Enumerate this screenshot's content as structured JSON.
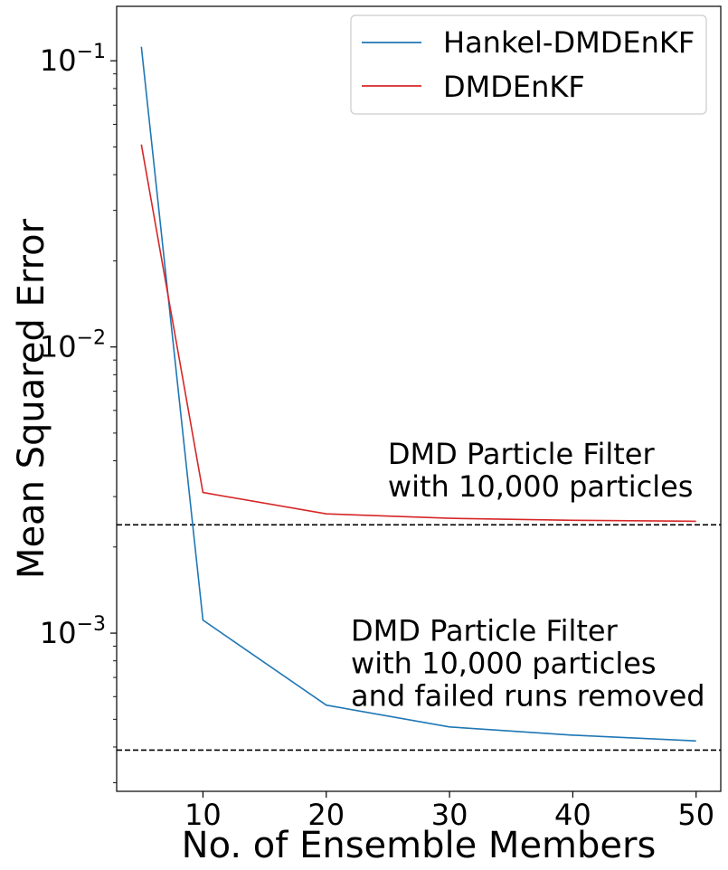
{
  "chart_data": {
    "type": "line",
    "xlabel": "No. of Ensemble Members",
    "ylabel": "Mean Squared Error",
    "x_scale": "linear",
    "y_scale": "log",
    "xlim": [
      3,
      52
    ],
    "ylim": [
      0.00028,
      0.155
    ],
    "x_ticks": [
      10,
      20,
      30,
      40,
      50
    ],
    "y_ticks": [
      {
        "value": 0.1,
        "base": "10",
        "exp": "−1"
      },
      {
        "value": 0.01,
        "base": "10",
        "exp": "−2"
      },
      {
        "value": 0.001,
        "base": "10",
        "exp": "−3"
      }
    ],
    "legend_position": "top-right",
    "series": [
      {
        "name": "Hankel-DMDEnKF",
        "color": "#1f77b4",
        "x": [
          5,
          10,
          20,
          30,
          40,
          50
        ],
        "y": [
          0.112,
          0.00111,
          0.00056,
          0.00047,
          0.00044,
          0.00042
        ]
      },
      {
        "name": "DMDEnKF",
        "color": "#d62728",
        "x": [
          5,
          10,
          20,
          30,
          40,
          50
        ],
        "y": [
          0.051,
          0.0031,
          0.00261,
          0.00252,
          0.00248,
          0.00246
        ]
      }
    ],
    "reference_lines": [
      {
        "y": 0.00239,
        "style": "dashed",
        "color": "#000000"
      },
      {
        "y": 0.00039,
        "style": "dashed",
        "color": "#000000"
      }
    ],
    "annotations": [
      {
        "lines": [
          "DMD Particle Filter",
          "with 10,000 particles"
        ],
        "x": 25,
        "y": 0.0039
      },
      {
        "lines": [
          "DMD Particle Filter",
          "with 10,000 particles",
          "and failed runs removed"
        ],
        "x": 22,
        "y": 0.00094
      }
    ]
  }
}
